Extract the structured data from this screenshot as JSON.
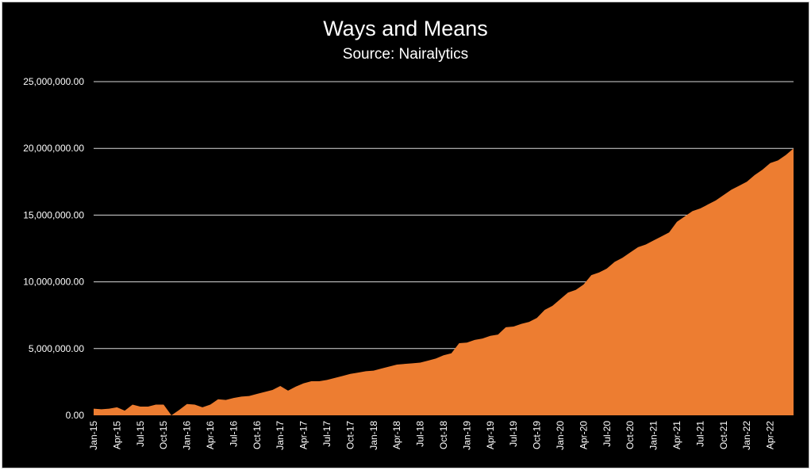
{
  "colors": {
    "background": "#000000",
    "area_fill": "#ED7D31",
    "gridline": "#d9d9d9",
    "text": "#ffffff"
  },
  "chart_data": {
    "type": "area",
    "title": "Ways and Means",
    "subtitle": "Source: Nairalytics",
    "xlabel": "",
    "ylabel": "",
    "ylim": [
      0,
      25000000
    ],
    "grid": true,
    "legend": "none",
    "y_ticks": [
      0,
      5000000,
      10000000,
      15000000,
      20000000,
      25000000
    ],
    "y_tick_labels": [
      "0.00",
      "5,000,000.00",
      "10,000,000.00",
      "15,000,000.00",
      "20,000,000.00",
      "25,000,000.00"
    ],
    "x_tick_labels": [
      "Jan-15",
      "Apr-15",
      "Jul-15",
      "Oct-15",
      "Jan-16",
      "Apr-16",
      "Jul-16",
      "Oct-16",
      "Jan-17",
      "Apr-17",
      "Jul-17",
      "Oct-17",
      "Jan-18",
      "Apr-18",
      "Jul-18",
      "Oct-18",
      "Jan-19",
      "Apr-19",
      "Jul-19",
      "Oct-19",
      "Jan-20",
      "Apr-20",
      "Jul-20",
      "Oct-20",
      "Jan-21",
      "Apr-21",
      "Jul-21",
      "Oct-21",
      "Jan-22",
      "Apr-22"
    ],
    "x_start": "Jan-15",
    "x_end": "Jun-22",
    "series": [
      {
        "values": [
          500000,
          450000,
          500000,
          600000,
          350000,
          800000,
          650000,
          650000,
          800000,
          800000,
          0,
          400000,
          850000,
          800000,
          600000,
          800000,
          1200000,
          1150000,
          1300000,
          1400000,
          1450000,
          1600000,
          1750000,
          1900000,
          2200000,
          1850000,
          2150000,
          2400000,
          2550000,
          2550000,
          2650000,
          2800000,
          2950000,
          3100000,
          3200000,
          3300000,
          3350000,
          3500000,
          3650000,
          3800000,
          3850000,
          3900000,
          3950000,
          4100000,
          4250000,
          4500000,
          4650000,
          5400000,
          5450000,
          5650000,
          5750000,
          5950000,
          6050000,
          6600000,
          6650000,
          6850000,
          7000000,
          7300000,
          7900000,
          8200000,
          8700000,
          9200000,
          9400000,
          9800000,
          10500000,
          10700000,
          11000000,
          11500000,
          11800000,
          12200000,
          12600000,
          12800000,
          13100000,
          13400000,
          13700000,
          14500000,
          14900000,
          15300000,
          15500000,
          15800000,
          16100000,
          16500000,
          16900000,
          17200000,
          17500000,
          18000000,
          18400000,
          18900000,
          19100000,
          19500000,
          20000000
        ]
      }
    ]
  }
}
